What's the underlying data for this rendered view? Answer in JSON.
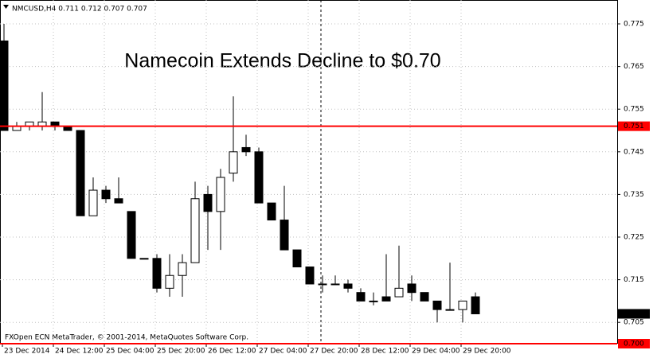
{
  "chart_data": {
    "type": "candlestick",
    "header": "NMCUSD,H4  0.711 0.712 0.707 0.707",
    "title": "Namecoin Extends Decline to $0.70",
    "footer": "FXOpen ECN MetaTrader, © 2001-2014, MetaQuotes Software Corp.",
    "categories": [
      "23 Dec 2014",
      null,
      null,
      null,
      "24 Dec 12:00",
      null,
      null,
      null,
      "25 Dec 04:00",
      null,
      null,
      null,
      "25 Dec 20:00",
      null,
      null,
      null,
      "26 Dec 12:00",
      null,
      null,
      null,
      "27 Dec 04:00",
      null,
      null,
      null,
      "27 Dec 20:00",
      null,
      null,
      null,
      "28 Dec 12:00",
      null,
      null,
      null,
      "29 Dec 04:00",
      null,
      null,
      null,
      "29 Dec 20:00",
      null
    ],
    "open": [
      0.771,
      0.75,
      0.751,
      0.751,
      0.752,
      0.751,
      0.75,
      0.73,
      0.736,
      0.734,
      0.731,
      0.72,
      0.72,
      0.713,
      0.716,
      0.719,
      0.735,
      0.731,
      0.74,
      0.746,
      0.745,
      0.733,
      0.729,
      0.722,
      0.718,
      0.714,
      0.714,
      0.714,
      0.712,
      0.71,
      0.711,
      0.711,
      0.714,
      0.712,
      0.71,
      0.708,
      0.708,
      0.711
    ],
    "high": [
      0.775,
      0.752,
      0.752,
      0.759,
      0.752,
      0.751,
      0.75,
      0.739,
      0.737,
      0.739,
      0.731,
      0.72,
      0.721,
      0.721,
      0.721,
      0.738,
      0.737,
      0.741,
      0.758,
      0.749,
      0.746,
      0.733,
      0.737,
      0.722,
      0.718,
      0.716,
      0.716,
      0.715,
      0.713,
      0.712,
      0.721,
      0.723,
      0.716,
      0.712,
      0.71,
      0.719,
      0.71,
      0.712
    ],
    "low": [
      0.75,
      0.75,
      0.75,
      0.75,
      0.75,
      0.75,
      0.73,
      0.73,
      0.733,
      0.733,
      0.72,
      0.72,
      0.712,
      0.711,
      0.711,
      0.719,
      0.722,
      0.722,
      0.738,
      0.744,
      0.733,
      0.729,
      0.722,
      0.718,
      0.714,
      0.712,
      0.714,
      0.712,
      0.71,
      0.709,
      0.71,
      0.711,
      0.71,
      0.71,
      0.705,
      0.708,
      0.705,
      0.707
    ],
    "close": [
      0.75,
      0.751,
      0.752,
      0.752,
      0.751,
      0.75,
      0.73,
      0.736,
      0.734,
      0.733,
      0.72,
      0.72,
      0.713,
      0.716,
      0.719,
      0.734,
      0.731,
      0.739,
      0.745,
      0.745,
      0.733,
      0.729,
      0.722,
      0.718,
      0.714,
      0.714,
      0.714,
      0.713,
      0.71,
      0.71,
      0.71,
      0.713,
      0.712,
      0.71,
      0.708,
      0.708,
      0.71,
      0.707
    ],
    "ylim": [
      0.7,
      0.7806
    ],
    "yticks": [
      0.705,
      0.715,
      0.725,
      0.735,
      0.745,
      0.755,
      0.765,
      0.775
    ],
    "grid": true,
    "hlines": [
      {
        "value": 0.751,
        "color": "#ff0000"
      },
      {
        "value": 0.7,
        "label": "0.700",
        "color": "#ff0000"
      }
    ],
    "last_price": 0.707
  }
}
